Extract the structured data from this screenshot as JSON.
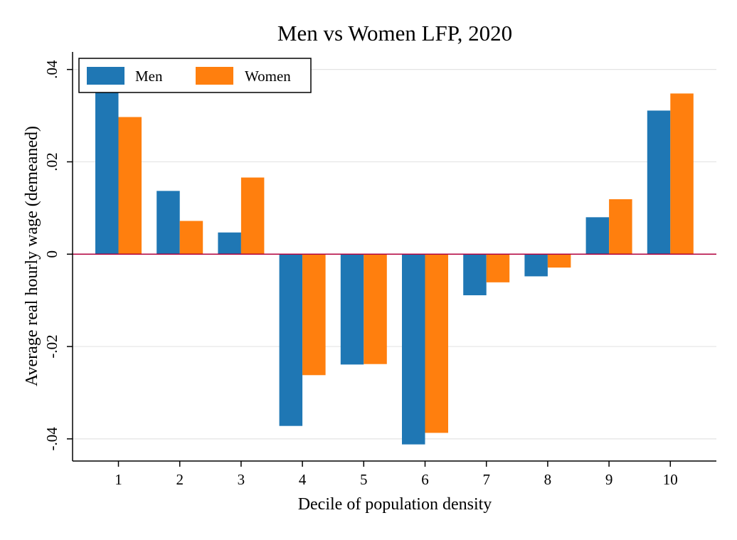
{
  "chart_data": {
    "type": "bar",
    "title": "Men vs Women LFP, 2020",
    "xlabel": "Decile of population density",
    "ylabel": "Average real hourly wage (demeaned)",
    "categories": [
      "1",
      "2",
      "3",
      "4",
      "5",
      "6",
      "7",
      "8",
      "9",
      "10"
    ],
    "series": [
      {
        "name": "Men",
        "color": "#1f77b4",
        "values": [
          0.0358,
          0.0137,
          0.0047,
          -0.0372,
          -0.0239,
          -0.0412,
          -0.0089,
          -0.0048,
          0.008,
          0.0311
        ]
      },
      {
        "name": "Women",
        "color": "#ff7f0e",
        "values": [
          0.0297,
          0.0072,
          0.0166,
          -0.0262,
          -0.0238,
          -0.0387,
          -0.0061,
          -0.0029,
          0.0119,
          0.0348
        ]
      }
    ],
    "ylim": [
      -0.0448,
      0.0438
    ],
    "yticks": [
      0.04,
      0.02,
      0,
      -0.02,
      -0.04
    ],
    "ytick_labels": [
      ".04",
      ".02",
      "0",
      "-.02",
      "-.04"
    ],
    "grid": true,
    "zero_line_color": "#b2003c",
    "legend_position": "top-left"
  }
}
